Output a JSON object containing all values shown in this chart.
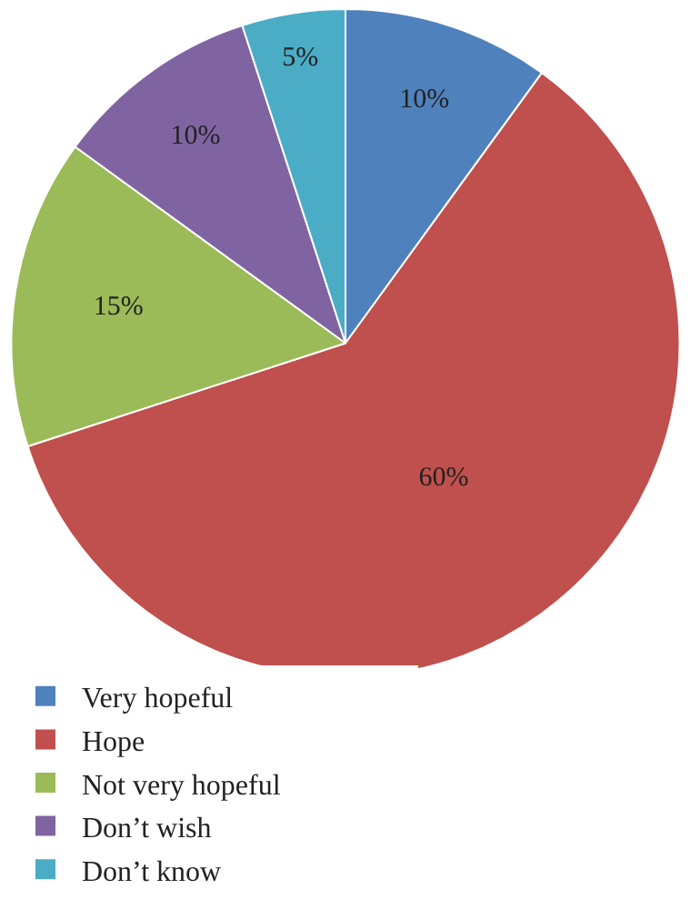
{
  "chart_data": {
    "type": "pie",
    "categories": [
      "Very hopeful",
      "Hope",
      "Not very hopeful",
      "Don’t wish",
      "Don’t know"
    ],
    "values": [
      10,
      60,
      15,
      10,
      5
    ],
    "value_labels": [
      "10%",
      "60%",
      "15%",
      "10%",
      "5%"
    ],
    "colors": [
      "#4f81bd",
      "#c0504d",
      "#9bbb59",
      "#8064a2",
      "#4bacc6"
    ],
    "legend": "bottom"
  }
}
